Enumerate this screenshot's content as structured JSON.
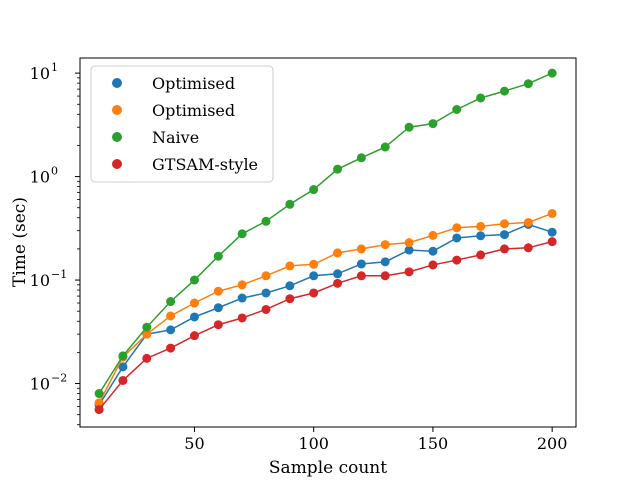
{
  "chart_data": {
    "type": "line",
    "title": "",
    "xlabel": "Sample count",
    "ylabel": "Time (sec)",
    "xlim": [
      2,
      210
    ],
    "ylim": [
      0.0038,
      14
    ],
    "yscale": "log",
    "grid": false,
    "legend_position": "top-left",
    "x_ticks": [
      50,
      100,
      150,
      200
    ],
    "x_tick_labels": [
      "50",
      "100",
      "150",
      "200"
    ],
    "y_ticks": [
      0.01,
      0.1,
      1,
      10
    ],
    "y_tick_labels": [
      "10",
      "10",
      "10",
      "10"
    ],
    "y_tick_exponents": [
      "−2",
      "−1",
      "0",
      "1"
    ],
    "x": [
      10,
      20,
      30,
      40,
      50,
      60,
      70,
      80,
      90,
      100,
      110,
      120,
      130,
      140,
      150,
      160,
      170,
      180,
      190,
      200
    ],
    "series": [
      {
        "name": "Optimised",
        "color": "#1f77b4",
        "values": [
          0.0062,
          0.0145,
          0.03,
          0.033,
          0.044,
          0.054,
          0.067,
          0.075,
          0.088,
          0.11,
          0.115,
          0.143,
          0.15,
          0.195,
          0.19,
          0.255,
          0.268,
          0.275,
          0.345,
          0.29
        ]
      },
      {
        "name": "Optimised",
        "color": "#ff7f0e",
        "values": [
          0.0065,
          0.018,
          0.03,
          0.045,
          0.06,
          0.078,
          0.09,
          0.11,
          0.137,
          0.142,
          0.183,
          0.2,
          0.22,
          0.23,
          0.27,
          0.32,
          0.33,
          0.35,
          0.36,
          0.44
        ]
      },
      {
        "name": "Naive",
        "color": "#2ca02c",
        "values": [
          0.008,
          0.0185,
          0.035,
          0.062,
          0.1,
          0.17,
          0.28,
          0.37,
          0.54,
          0.75,
          1.18,
          1.52,
          1.93,
          3.0,
          3.25,
          4.45,
          5.75,
          6.7,
          7.9,
          10.0
        ]
      },
      {
        "name": "GTSAM-style",
        "color": "#d62728",
        "values": [
          0.0056,
          0.0107,
          0.0175,
          0.022,
          0.029,
          0.037,
          0.043,
          0.052,
          0.066,
          0.075,
          0.093,
          0.11,
          0.11,
          0.12,
          0.14,
          0.156,
          0.175,
          0.2,
          0.205,
          0.235
        ]
      }
    ]
  }
}
